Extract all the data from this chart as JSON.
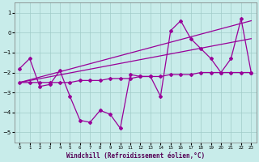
{
  "xlabel": "Windchill (Refroidissement éolien,°C)",
  "x_all": [
    0,
    1,
    2,
    3,
    4,
    5,
    6,
    7,
    8,
    9,
    10,
    11,
    12,
    13,
    14,
    15,
    16,
    17,
    18,
    19,
    20,
    21,
    22,
    23
  ],
  "line_zigzag_x": [
    0,
    1,
    2,
    3,
    4,
    5,
    6,
    7,
    8,
    9,
    10,
    11,
    12,
    13,
    14,
    15,
    16,
    17,
    18,
    19,
    20,
    21,
    22,
    23
  ],
  "line_zigzag_y": [
    -1.8,
    -1.3,
    -2.7,
    -2.6,
    -1.9,
    -3.2,
    -4.4,
    -4.5,
    -3.9,
    -4.1,
    -4.8,
    -2.1,
    -2.2,
    -2.2,
    -3.2,
    0.1,
    0.6,
    -0.3,
    -0.8,
    -1.3,
    -2.0,
    -1.3,
    0.7,
    -2.0
  ],
  "line_flat_x": [
    0,
    1,
    2,
    3,
    4,
    5,
    6,
    7,
    8,
    9,
    10,
    11,
    12,
    13,
    14,
    15,
    16,
    17,
    18,
    19,
    20,
    21,
    22,
    23
  ],
  "line_flat_y": [
    -2.5,
    -2.5,
    -2.5,
    -2.5,
    -2.5,
    -2.5,
    -2.4,
    -2.4,
    -2.4,
    -2.3,
    -2.3,
    -2.3,
    -2.2,
    -2.2,
    -2.2,
    -2.1,
    -2.1,
    -2.1,
    -2.0,
    -2.0,
    -2.0,
    -2.0,
    -2.0,
    -2.0
  ],
  "line_trend_x": [
    0,
    23
  ],
  "line_trend_y": [
    -2.5,
    -0.3
  ],
  "line_trend2_x": [
    0,
    23
  ],
  "line_trend2_y": [
    -2.5,
    0.6
  ],
  "ylim": [
    -5.5,
    1.5
  ],
  "yticks": [
    -5,
    -4,
    -3,
    -2,
    -1,
    0,
    1
  ],
  "xlim": [
    -0.5,
    23.5
  ],
  "line_color": "#990099",
  "bg_color": "#c8ecea",
  "grid_color": "#a0ccc8"
}
